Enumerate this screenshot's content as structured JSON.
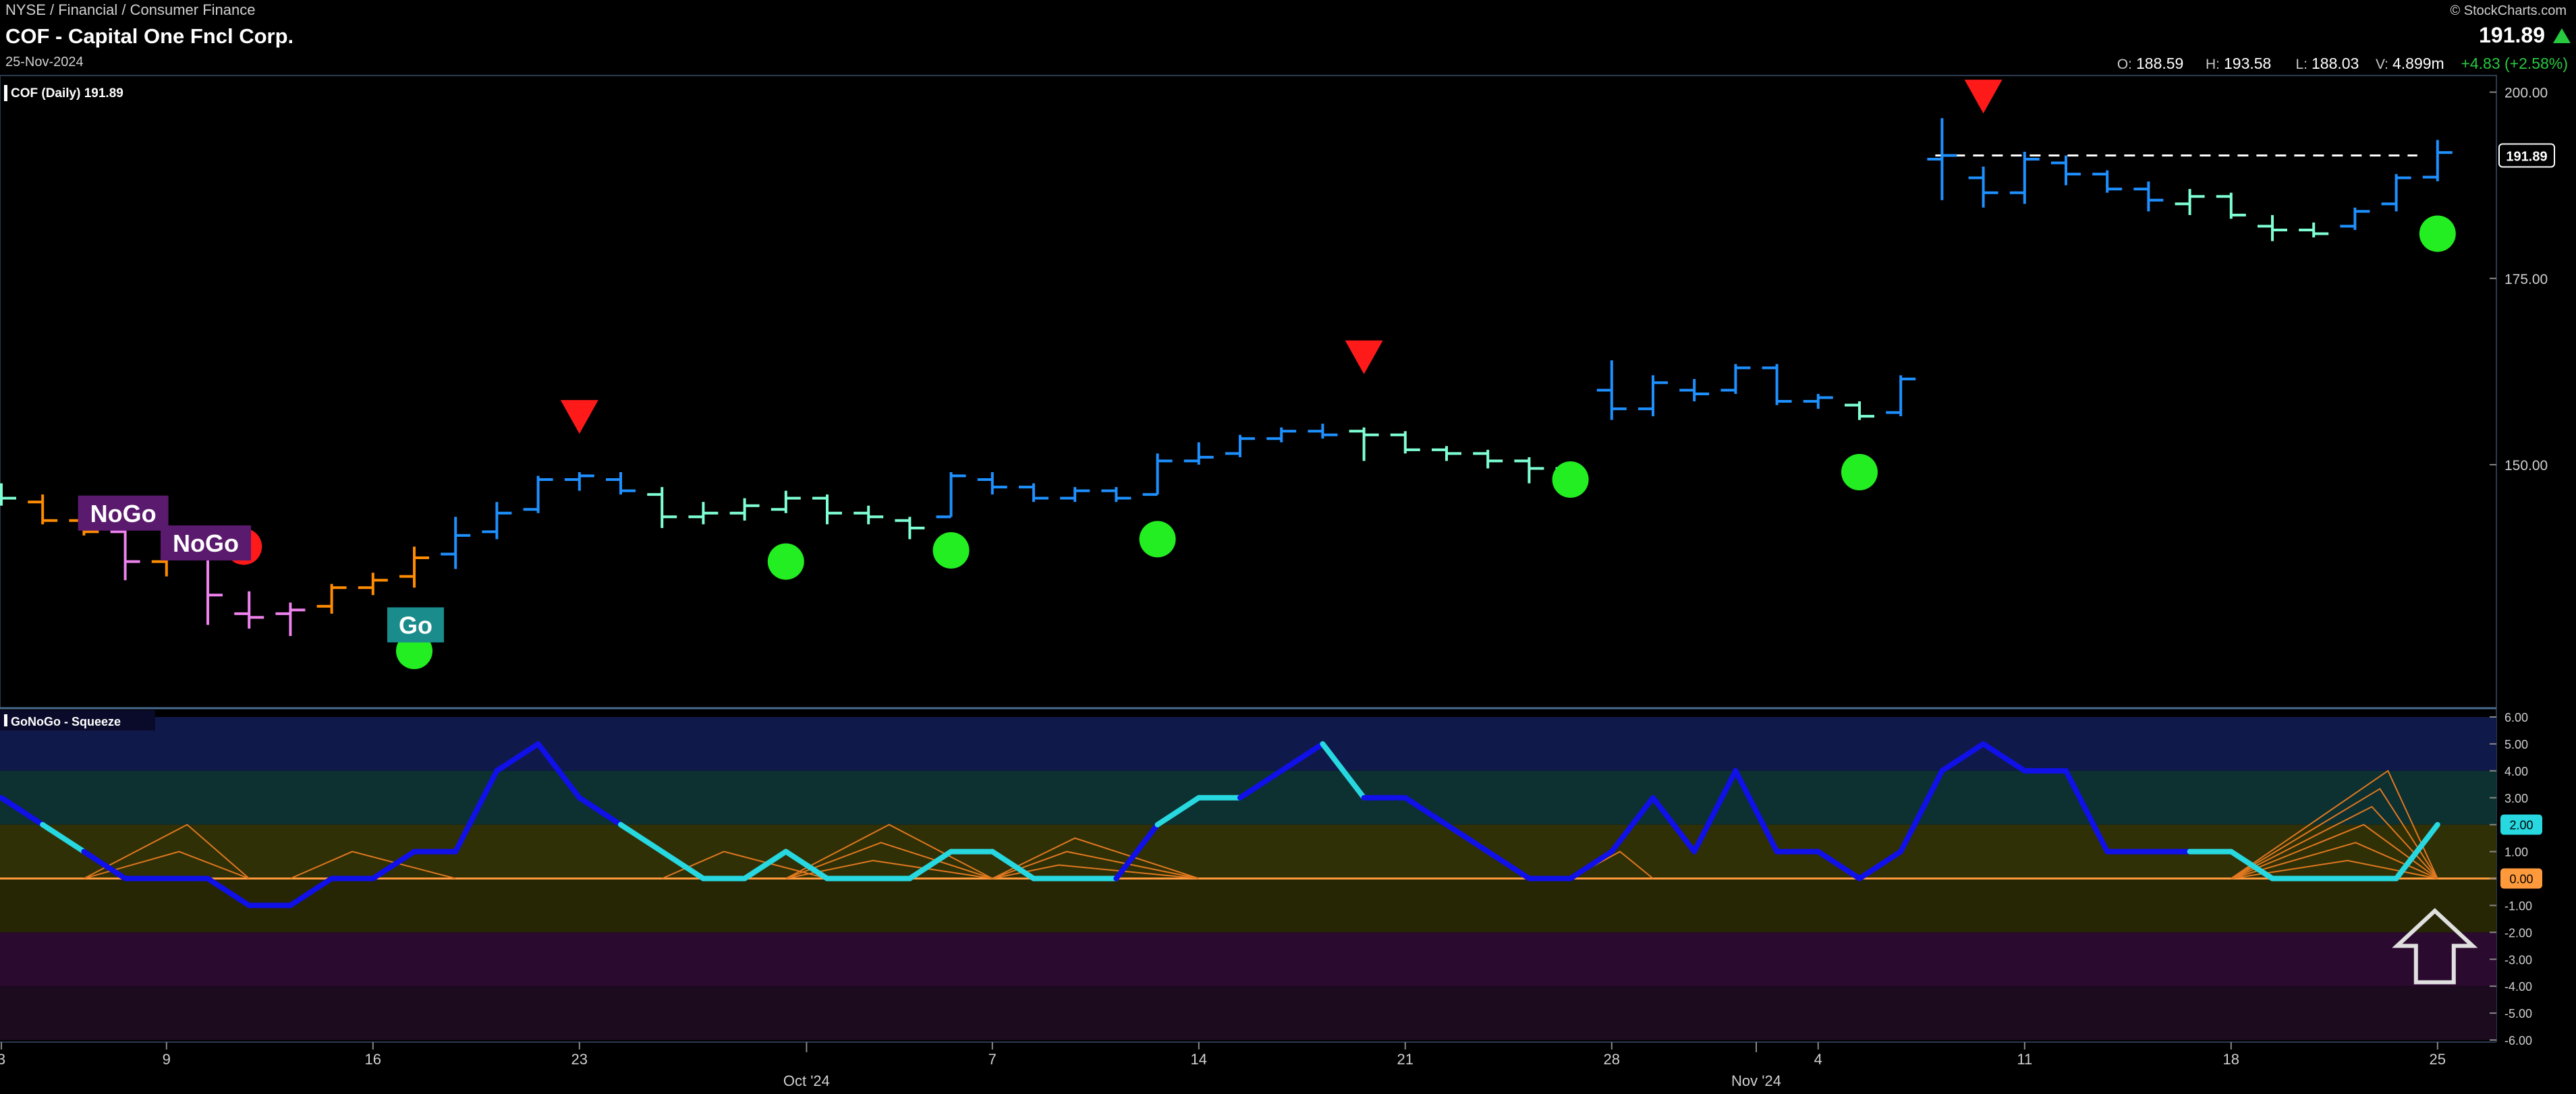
{
  "header": {
    "sector": "NYSE / Financial / Consumer Finance",
    "title": "COF - Capital One Fncl Corp.",
    "date": "25-Nov-2024",
    "watermark": "© StockCharts.com",
    "price": "191.89",
    "ohlc": [
      {
        "label": "O:",
        "value": "188.59"
      },
      {
        "label": "H:",
        "value": "193.58"
      },
      {
        "label": "L:",
        "value": "188.03"
      },
      {
        "label": "V:",
        "value": "4.899m"
      }
    ],
    "change": "+4.83 (+2.58%)",
    "colors": {
      "up": "#27c93f",
      "down": "#ff3b30"
    }
  },
  "chart_data": [
    {
      "type": "ohlc",
      "label": "COF (Daily) 191.89",
      "last_price_tag": "191.89",
      "y_ticks": [
        "200.00",
        "175.00",
        "150.00"
      ],
      "ylim": [
        117.5,
        201.5
      ],
      "x_ticks": [
        {
          "i": 0,
          "label": "3"
        },
        {
          "i": 4,
          "label": "9"
        },
        {
          "i": 9,
          "label": "16"
        },
        {
          "i": 14,
          "label": "23"
        },
        {
          "i": 24,
          "label": "7"
        },
        {
          "i": 29,
          "label": "14"
        },
        {
          "i": 34,
          "label": "21"
        },
        {
          "i": 39,
          "label": "28"
        },
        {
          "i": 44,
          "label": "4"
        },
        {
          "i": 49,
          "label": "11"
        },
        {
          "i": 54,
          "label": "18"
        },
        {
          "i": 59,
          "label": "25"
        }
      ],
      "month_labels": [
        {
          "after": 19,
          "label": "Oct '24"
        },
        {
          "after": 42,
          "label": "Nov '24"
        }
      ],
      "bars": [
        {
          "i": 0,
          "o": 146.0,
          "h": 147.5,
          "l": 144.5,
          "c": 145.5,
          "color": "#7fffd4"
        },
        {
          "i": 1,
          "o": 145.0,
          "h": 146.0,
          "l": 142.0,
          "c": 142.5,
          "color": "#ff8c00"
        },
        {
          "i": 2,
          "o": 142.5,
          "h": 144.0,
          "l": 140.5,
          "c": 141.0,
          "color": "#ff8c00"
        },
        {
          "i": 3,
          "o": 141.0,
          "h": 142.0,
          "l": 134.5,
          "c": 137.0,
          "color": "#ee82ee"
        },
        {
          "i": 4,
          "o": 137.0,
          "h": 140.0,
          "l": 135.0,
          "c": 139.0,
          "color": "#ff8c00"
        },
        {
          "i": 5,
          "o": 138.0,
          "h": 140.0,
          "l": 128.5,
          "c": 132.5,
          "color": "#ee82ee"
        },
        {
          "i": 6,
          "o": 130.0,
          "h": 133.0,
          "l": 128.0,
          "c": 129.5,
          "color": "#ee82ee"
        },
        {
          "i": 7,
          "o": 130.0,
          "h": 131.5,
          "l": 127.0,
          "c": 130.5,
          "color": "#ee82ee"
        },
        {
          "i": 8,
          "o": 131.0,
          "h": 134.0,
          "l": 130.0,
          "c": 133.5,
          "color": "#ff8c00"
        },
        {
          "i": 9,
          "o": 133.5,
          "h": 135.5,
          "l": 132.5,
          "c": 134.5,
          "color": "#ff8c00"
        },
        {
          "i": 10,
          "o": 135.0,
          "h": 139.0,
          "l": 133.5,
          "c": 137.5,
          "color": "#ff8c00"
        },
        {
          "i": 11,
          "o": 138.0,
          "h": 143.0,
          "l": 136.0,
          "c": 140.5,
          "color": "#1e90ff"
        },
        {
          "i": 12,
          "o": 141.0,
          "h": 145.0,
          "l": 140.0,
          "c": 143.5,
          "color": "#1e90ff"
        },
        {
          "i": 13,
          "o": 144.0,
          "h": 148.5,
          "l": 143.5,
          "c": 148.0,
          "color": "#1e90ff"
        },
        {
          "i": 14,
          "o": 148.0,
          "h": 149.0,
          "l": 146.5,
          "c": 148.5,
          "color": "#1e90ff"
        },
        {
          "i": 15,
          "o": 148.0,
          "h": 149.0,
          "l": 146.0,
          "c": 146.5,
          "color": "#1e90ff"
        },
        {
          "i": 16,
          "o": 146.0,
          "h": 147.0,
          "l": 141.5,
          "c": 143.0,
          "color": "#7fffd4"
        },
        {
          "i": 17,
          "o": 143.0,
          "h": 145.0,
          "l": 142.0,
          "c": 143.5,
          "color": "#7fffd4"
        },
        {
          "i": 18,
          "o": 143.5,
          "h": 145.5,
          "l": 142.5,
          "c": 144.5,
          "color": "#7fffd4"
        },
        {
          "i": 19,
          "o": 144.0,
          "h": 146.5,
          "l": 143.5,
          "c": 145.5,
          "color": "#7fffd4"
        },
        {
          "i": 20,
          "o": 145.5,
          "h": 146.0,
          "l": 142.0,
          "c": 143.5,
          "color": "#7fffd4"
        },
        {
          "i": 21,
          "o": 143.5,
          "h": 144.5,
          "l": 142.0,
          "c": 143.0,
          "color": "#7fffd4"
        },
        {
          "i": 22,
          "o": 142.5,
          "h": 143.0,
          "l": 140.0,
          "c": 141.5,
          "color": "#7fffd4"
        },
        {
          "i": 23,
          "o": 143.0,
          "h": 149.0,
          "l": 143.0,
          "c": 148.5,
          "color": "#1e90ff"
        },
        {
          "i": 24,
          "o": 148.0,
          "h": 149.0,
          "l": 146.0,
          "c": 147.0,
          "color": "#1e90ff"
        },
        {
          "i": 25,
          "o": 147.0,
          "h": 147.5,
          "l": 145.0,
          "c": 145.5,
          "color": "#1e90ff"
        },
        {
          "i": 26,
          "o": 145.5,
          "h": 147.0,
          "l": 145.0,
          "c": 146.5,
          "color": "#1e90ff"
        },
        {
          "i": 27,
          "o": 146.5,
          "h": 147.0,
          "l": 145.0,
          "c": 145.5,
          "color": "#1e90ff"
        },
        {
          "i": 28,
          "o": 146.0,
          "h": 151.5,
          "l": 146.0,
          "c": 150.5,
          "color": "#1e90ff"
        },
        {
          "i": 29,
          "o": 150.5,
          "h": 153.0,
          "l": 150.0,
          "c": 151.0,
          "color": "#1e90ff"
        },
        {
          "i": 30,
          "o": 151.5,
          "h": 154.0,
          "l": 151.0,
          "c": 153.5,
          "color": "#1e90ff"
        },
        {
          "i": 31,
          "o": 153.5,
          "h": 155.0,
          "l": 153.0,
          "c": 154.5,
          "color": "#1e90ff"
        },
        {
          "i": 32,
          "o": 154.5,
          "h": 155.5,
          "l": 153.5,
          "c": 154.0,
          "color": "#1e90ff"
        },
        {
          "i": 33,
          "o": 154.5,
          "h": 155.0,
          "l": 150.5,
          "c": 154.0,
          "color": "#7fffd4"
        },
        {
          "i": 34,
          "o": 154.0,
          "h": 154.5,
          "l": 151.5,
          "c": 152.0,
          "color": "#7fffd4"
        },
        {
          "i": 35,
          "o": 152.0,
          "h": 152.5,
          "l": 150.5,
          "c": 151.5,
          "color": "#7fffd4"
        },
        {
          "i": 36,
          "o": 151.5,
          "h": 152.0,
          "l": 149.5,
          "c": 150.5,
          "color": "#7fffd4"
        },
        {
          "i": 37,
          "o": 150.5,
          "h": 151.0,
          "l": 147.5,
          "c": 149.5,
          "color": "#7fffd4"
        },
        {
          "i": 38,
          "o": 149.5,
          "h": 150.0,
          "l": 147.5,
          "c": 148.0,
          "color": "#7fffd4"
        },
        {
          "i": 39,
          "o": 160.0,
          "h": 164.0,
          "l": 156.0,
          "c": 157.5,
          "color": "#1e90ff"
        },
        {
          "i": 40,
          "o": 157.5,
          "h": 162.0,
          "l": 156.5,
          "c": 161.0,
          "color": "#1e90ff"
        },
        {
          "i": 41,
          "o": 160.0,
          "h": 161.5,
          "l": 158.5,
          "c": 159.5,
          "color": "#1e90ff"
        },
        {
          "i": 42,
          "o": 160.0,
          "h": 163.5,
          "l": 159.5,
          "c": 163.0,
          "color": "#1e90ff"
        },
        {
          "i": 43,
          "o": 163.0,
          "h": 163.5,
          "l": 158.0,
          "c": 158.5,
          "color": "#1e90ff"
        },
        {
          "i": 44,
          "o": 158.5,
          "h": 159.5,
          "l": 157.5,
          "c": 159.0,
          "color": "#1e90ff"
        },
        {
          "i": 45,
          "o": 158.0,
          "h": 158.5,
          "l": 156.0,
          "c": 156.5,
          "color": "#7fffd4"
        },
        {
          "i": 46,
          "o": 157.0,
          "h": 162.0,
          "l": 156.5,
          "c": 161.5,
          "color": "#1e90ff"
        },
        {
          "i": 47,
          "o": 191.0,
          "h": 196.5,
          "l": 185.5,
          "c": 191.5,
          "color": "#1e90ff"
        },
        {
          "i": 48,
          "o": 188.5,
          "h": 190.0,
          "l": 184.5,
          "c": 186.5,
          "color": "#1e90ff"
        },
        {
          "i": 49,
          "o": 186.5,
          "h": 192.0,
          "l": 185.0,
          "c": 191.0,
          "color": "#1e90ff"
        },
        {
          "i": 50,
          "o": 190.5,
          "h": 191.5,
          "l": 187.5,
          "c": 189.0,
          "color": "#1e90ff"
        },
        {
          "i": 51,
          "o": 189.0,
          "h": 189.5,
          "l": 186.5,
          "c": 187.0,
          "color": "#1e90ff"
        },
        {
          "i": 52,
          "o": 187.0,
          "h": 188.0,
          "l": 184.0,
          "c": 185.5,
          "color": "#1e90ff"
        },
        {
          "i": 53,
          "o": 185.0,
          "h": 187.0,
          "l": 183.5,
          "c": 186.0,
          "color": "#7fffd4"
        },
        {
          "i": 54,
          "o": 186.0,
          "h": 186.5,
          "l": 183.0,
          "c": 183.5,
          "color": "#7fffd4"
        },
        {
          "i": 55,
          "o": 182.0,
          "h": 183.5,
          "l": 180.0,
          "c": 181.5,
          "color": "#7fffd4"
        },
        {
          "i": 56,
          "o": 181.5,
          "h": 182.5,
          "l": 180.5,
          "c": 181.0,
          "color": "#7fffd4"
        },
        {
          "i": 57,
          "o": 182.0,
          "h": 184.5,
          "l": 181.5,
          "c": 184.0,
          "color": "#1e90ff"
        },
        {
          "i": 58,
          "o": 185.0,
          "h": 189.0,
          "l": 184.0,
          "c": 188.5,
          "color": "#1e90ff"
        },
        {
          "i": 59,
          "o": 188.59,
          "h": 193.58,
          "l": 188.03,
          "c": 191.89,
          "color": "#1e90ff"
        }
      ],
      "reference_line": {
        "value": 191.5,
        "from_i": 47,
        "to_i": 59,
        "color": "#ffffff"
      },
      "red_triangles": [
        {
          "i": 14,
          "y": 156.5
        },
        {
          "i": 33,
          "y": 164.5
        },
        {
          "i": 48,
          "y": 199.5
        }
      ],
      "green_dots": [
        {
          "i": 10,
          "y": 125.0
        },
        {
          "i": 19,
          "y": 137.0
        },
        {
          "i": 23,
          "y": 138.5
        },
        {
          "i": 28,
          "y": 140.0
        },
        {
          "i": 38,
          "y": 148.0
        },
        {
          "i": 45,
          "y": 149.0
        },
        {
          "i": 59,
          "y": 181.0
        }
      ],
      "red_dots": [
        {
          "i": 6,
          "y": 139.0
        }
      ],
      "labels": [
        {
          "text": "NoGo",
          "i": 3,
          "y": 143.5,
          "bg": "#5a1a6e"
        },
        {
          "text": "NoGo",
          "i": 5,
          "y": 139.5,
          "bg": "#5a1a6e"
        },
        {
          "text": "Go",
          "i": 10,
          "y": 128.5,
          "bg": "#1a8c8c"
        }
      ]
    },
    {
      "type": "line",
      "label": "GoNoGo - Squeeze",
      "y_ticks": [
        "6.00",
        "5.00",
        "4.00",
        "3.00",
        "2.00",
        "1.00",
        "0.00",
        "-1.00",
        "-2.00",
        "-3.00",
        "-4.00",
        "-5.00",
        "-6.00"
      ],
      "ylim": [
        -6.0,
        6.0
      ],
      "value_tags": [
        {
          "value": 2.0,
          "text": "2.00",
          "bg": "#27d8e0"
        },
        {
          "value": 0.0,
          "text": "0.00",
          "bg": "#ff9a3c"
        }
      ],
      "zero_line_color": "#ff9a3c",
      "bands": [
        {
          "from": 4,
          "to": 6,
          "color": "#101a4a"
        },
        {
          "from": 2,
          "to": 4,
          "color": "#0d3030"
        },
        {
          "from": 0,
          "to": 2,
          "color": "#303006"
        },
        {
          "from": -2,
          "to": 0,
          "color": "#262604"
        },
        {
          "from": -4,
          "to": -2,
          "color": "#2a0a2e"
        },
        {
          "from": -6,
          "to": -4,
          "color": "#1c0a1e"
        }
      ],
      "series": [
        {
          "values": [
            3,
            2,
            1,
            0,
            0,
            0,
            -1,
            -1,
            0,
            0,
            1,
            1,
            4,
            5,
            3,
            2,
            1,
            0,
            0,
            1,
            0,
            0,
            0,
            1,
            1,
            0,
            0,
            0,
            2,
            3,
            3,
            4,
            5,
            3,
            3,
            2,
            1,
            0,
            0,
            1,
            3,
            1,
            4,
            1,
            1,
            0,
            1,
            4,
            5,
            4,
            4,
            1,
            1,
            1,
            1,
            0,
            0,
            0,
            0,
            2
          ],
          "colors": [
            "#1010e8",
            "#1010e8",
            "#27d8e0",
            "#1010e8",
            "#1010e8",
            "#1010e8",
            "#1010e8",
            "#1010e8",
            "#1010e8",
            "#1010e8",
            "#1010e8",
            "#1010e8",
            "#1010e8",
            "#1010e8",
            "#1010e8",
            "#1010e8",
            "#27d8e0",
            "#27d8e0",
            "#27d8e0",
            "#27d8e0",
            "#27d8e0",
            "#27d8e0",
            "#27d8e0",
            "#27d8e0",
            "#27d8e0",
            "#27d8e0",
            "#27d8e0",
            "#27d8e0",
            "#1010e8",
            "#27d8e0",
            "#27d8e0",
            "#1010e8",
            "#1010e8",
            "#27d8e0",
            "#1010e8",
            "#1010e8",
            "#1010e8",
            "#1010e8",
            "#1010e8",
            "#1010e8",
            "#1010e8",
            "#1010e8",
            "#1010e8",
            "#1010e8",
            "#1010e8",
            "#1010e8",
            "#1010e8",
            "#1010e8",
            "#1010e8",
            "#1010e8",
            "#1010e8",
            "#1010e8",
            "#1010e8",
            "#1010e8",
            "#27d8e0",
            "#27d8e0",
            "#27d8e0",
            "#27d8e0",
            "#27d8e0",
            "#27d8e0"
          ]
        }
      ],
      "squeeze_peaks": [
        {
          "from": 2,
          "to": 6,
          "peak_i": 4.5,
          "peak": 2.0,
          "steps": 2
        },
        {
          "from": 7,
          "to": 11,
          "peak_i": 8.5,
          "peak": 1.0,
          "steps": 1
        },
        {
          "from": 16,
          "to": 20,
          "peak_i": 17.5,
          "peak": 1.0,
          "steps": 1
        },
        {
          "from": 19,
          "to": 24,
          "peak_i": 21.5,
          "peak": 2.0,
          "steps": 3
        },
        {
          "from": 24,
          "to": 29,
          "peak_i": 26,
          "peak": 1.5,
          "steps": 3
        },
        {
          "from": 38,
          "to": 40,
          "peak_i": 39.2,
          "peak": 1.0,
          "steps": 1
        },
        {
          "from": 54,
          "to": 59,
          "peak_i": 57.8,
          "peak": 4.0,
          "steps": 6
        }
      ],
      "arrow": {
        "i": 59,
        "color": "#e0e0e0"
      }
    }
  ]
}
